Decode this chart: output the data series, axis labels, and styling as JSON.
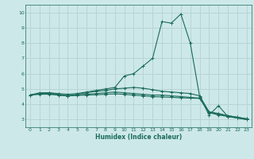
{
  "background_color": "#cde8e8",
  "grid_color": "#b8d4d4",
  "line_color": "#1a6b5a",
  "xlabel": "Humidex (Indice chaleur)",
  "xlim": [
    -0.5,
    23.5
  ],
  "ylim": [
    2.5,
    10.5
  ],
  "yticks": [
    3,
    4,
    5,
    6,
    7,
    8,
    9,
    10
  ],
  "xticks": [
    0,
    1,
    2,
    3,
    4,
    5,
    6,
    7,
    8,
    9,
    10,
    11,
    12,
    13,
    14,
    15,
    16,
    17,
    18,
    19,
    20,
    21,
    22,
    23
  ],
  "series": [
    {
      "x": [
        0,
        1,
        2,
        3,
        4,
        5,
        6,
        7,
        8,
        9,
        10,
        11,
        12,
        13,
        14,
        15,
        16,
        17,
        18,
        19,
        20,
        21,
        22,
        23
      ],
      "y": [
        4.6,
        4.7,
        4.75,
        4.7,
        4.65,
        4.7,
        4.8,
        4.9,
        5.0,
        5.1,
        5.85,
        6.0,
        6.5,
        7.0,
        9.4,
        9.3,
        9.9,
        8.0,
        4.5,
        3.3,
        3.9,
        3.2,
        3.1,
        3.0
      ]
    },
    {
      "x": [
        0,
        1,
        2,
        3,
        4,
        5,
        6,
        7,
        8,
        9,
        10,
        11,
        12,
        13,
        14,
        15,
        16,
        17,
        18,
        19,
        20,
        21,
        22,
        23
      ],
      "y": [
        4.6,
        4.75,
        4.75,
        4.65,
        4.55,
        4.65,
        4.75,
        4.85,
        4.9,
        5.0,
        5.05,
        5.1,
        5.05,
        4.95,
        4.85,
        4.8,
        4.75,
        4.7,
        4.55,
        3.5,
        3.4,
        3.25,
        3.15,
        3.05
      ]
    },
    {
      "x": [
        0,
        1,
        2,
        3,
        4,
        5,
        6,
        7,
        8,
        9,
        10,
        11,
        12,
        13,
        14,
        15,
        16,
        17,
        18,
        19,
        20,
        21,
        22,
        23
      ],
      "y": [
        4.6,
        4.7,
        4.7,
        4.6,
        4.55,
        4.6,
        4.65,
        4.7,
        4.75,
        4.8,
        4.75,
        4.7,
        4.65,
        4.6,
        4.6,
        4.55,
        4.5,
        4.45,
        4.4,
        3.5,
        3.35,
        3.25,
        3.15,
        3.05
      ]
    },
    {
      "x": [
        0,
        1,
        2,
        3,
        4,
        5,
        6,
        7,
        8,
        9,
        10,
        11,
        12,
        13,
        14,
        15,
        16,
        17,
        18,
        19,
        20,
        21,
        22,
        23
      ],
      "y": [
        4.6,
        4.65,
        4.65,
        4.6,
        4.55,
        4.58,
        4.6,
        4.62,
        4.65,
        4.68,
        4.65,
        4.6,
        4.55,
        4.5,
        4.48,
        4.45,
        4.42,
        4.4,
        4.38,
        3.45,
        3.3,
        3.2,
        3.1,
        3.0
      ]
    }
  ]
}
